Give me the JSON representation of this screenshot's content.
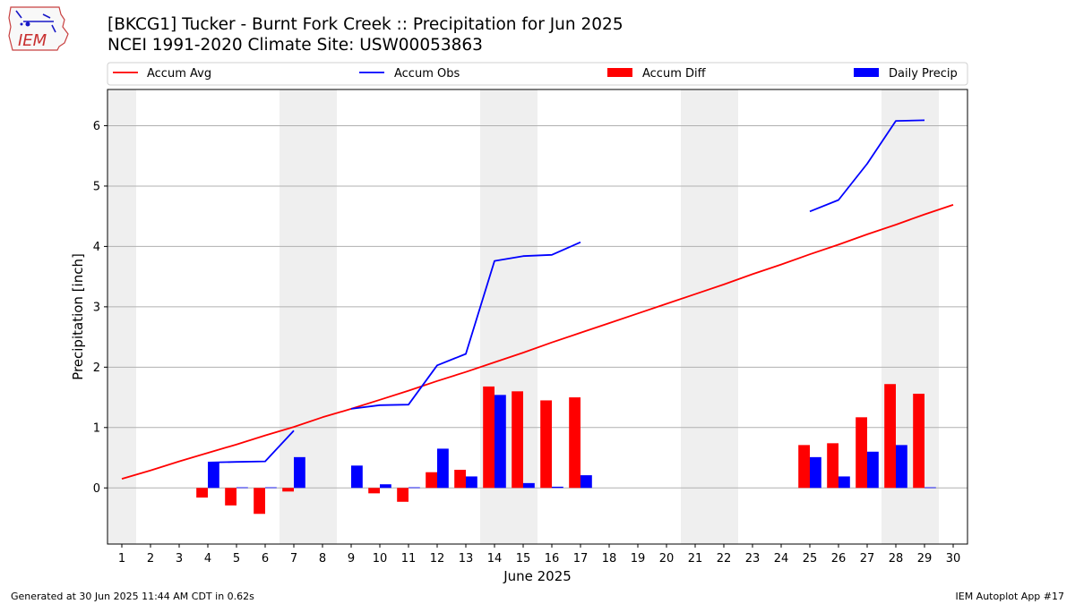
{
  "header": {
    "title": "[BKCG1] Tucker - Burnt Fork Creek :: Precipitation for Jun 2025",
    "subtitle": "NCEI 1991-2020 Climate Site: USW00053863",
    "logo_text": "IEM"
  },
  "footer": {
    "generated": "Generated at 30 Jun 2025 11:44 AM CDT in 0.62s",
    "app": "IEM Autoplot App #17"
  },
  "chart_data": {
    "type": "bar",
    "xlabel": "June 2025",
    "ylabel": "Precipitation [inch]",
    "xlim": [
      0.5,
      30.5
    ],
    "ylim": [
      -0.93,
      6.6
    ],
    "x_ticks": [
      1,
      2,
      3,
      4,
      5,
      6,
      7,
      8,
      9,
      10,
      11,
      12,
      13,
      14,
      15,
      16,
      17,
      18,
      19,
      20,
      21,
      22,
      23,
      24,
      25,
      26,
      27,
      28,
      29,
      30
    ],
    "y_ticks": [
      0,
      1,
      2,
      3,
      4,
      5,
      6
    ],
    "grid": "horizontal",
    "legend_position": "top",
    "weekend_shading": [
      [
        0.5,
        1.5
      ],
      [
        6.5,
        8.5
      ],
      [
        13.5,
        15.5
      ],
      [
        20.5,
        22.5
      ],
      [
        27.5,
        29.5
      ]
    ],
    "legend": [
      {
        "label": "Accum Avg",
        "kind": "line",
        "color": "#ff0000"
      },
      {
        "label": "Accum Obs",
        "kind": "line",
        "color": "#0000ff"
      },
      {
        "label": "Accum Diff",
        "kind": "bar",
        "color": "#ff0000"
      },
      {
        "label": "Daily Precip",
        "kind": "bar",
        "color": "#0000ff"
      }
    ],
    "series": [
      {
        "name": "Accum Avg",
        "type": "line",
        "color": "#ff0000",
        "x": [
          1,
          2,
          3,
          4,
          5,
          6,
          7,
          8,
          9,
          10,
          11,
          12,
          13,
          14,
          15,
          16,
          17,
          18,
          19,
          20,
          21,
          22,
          23,
          24,
          25,
          26,
          27,
          28,
          29,
          30
        ],
        "values": [
          0.15,
          0.29,
          0.44,
          0.58,
          0.72,
          0.87,
          1.01,
          1.17,
          1.31,
          1.46,
          1.61,
          1.77,
          1.92,
          2.08,
          2.24,
          2.41,
          2.57,
          2.73,
          2.89,
          3.05,
          3.21,
          3.37,
          3.54,
          3.7,
          3.87,
          4.03,
          4.2,
          4.36,
          4.53,
          4.69
        ]
      },
      {
        "name": "Accum Obs",
        "type": "line",
        "color": "#0000ff",
        "x": [
          1,
          2,
          3,
          4,
          5,
          6,
          7,
          8,
          9,
          10,
          11,
          12,
          13,
          14,
          15,
          16,
          17,
          18,
          19,
          20,
          21,
          22,
          23,
          24,
          25,
          26,
          27,
          28,
          29,
          30
        ],
        "values": [
          null,
          null,
          null,
          0.42,
          0.43,
          0.44,
          0.95,
          null,
          1.31,
          1.37,
          1.38,
          2.03,
          2.22,
          3.76,
          3.84,
          3.86,
          4.07,
          null,
          null,
          null,
          null,
          null,
          null,
          null,
          4.58,
          4.77,
          5.37,
          6.08,
          6.09,
          null
        ]
      },
      {
        "name": "Accum Diff",
        "type": "bar",
        "color": "#ff0000",
        "x": [
          4,
          5,
          6,
          7,
          10,
          11,
          12,
          13,
          14,
          15,
          16,
          17,
          25,
          26,
          27,
          28,
          29
        ],
        "values": [
          -0.16,
          -0.29,
          -0.43,
          -0.06,
          -0.09,
          -0.23,
          0.26,
          0.3,
          1.68,
          1.6,
          1.45,
          1.5,
          0.71,
          0.74,
          1.17,
          1.72,
          1.56
        ]
      },
      {
        "name": "Daily Precip",
        "type": "bar",
        "color": "#0000ff",
        "x": [
          4,
          5,
          6,
          7,
          9,
          10,
          11,
          12,
          13,
          14,
          15,
          16,
          17,
          25,
          26,
          27,
          28,
          29
        ],
        "values": [
          0.42,
          0.01,
          0.01,
          0.51,
          0.37,
          0.06,
          0.01,
          0.65,
          0.19,
          1.54,
          0.08,
          0.02,
          0.21,
          0.51,
          0.19,
          0.6,
          0.71,
          0.01
        ]
      }
    ]
  }
}
